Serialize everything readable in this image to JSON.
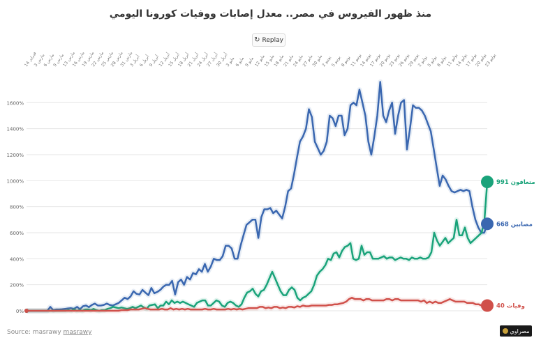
{
  "chart_data": {
    "type": "line",
    "title": "منذ ظهور الفيروس في مصر.. معدل إصابات ووفيات كورونا اليومي",
    "ylim": [
      0,
      1800
    ],
    "y_ticks": [
      0,
      200,
      400,
      600,
      800,
      1000,
      1200,
      1400,
      1600
    ],
    "y_tick_labels": [
      "0%",
      "200%",
      "400%",
      "600%",
      "800%",
      "1000%",
      "1200%",
      "1400%",
      "1600%"
    ],
    "x_tick_labels": [
      "فبراير 14",
      "مارس 3",
      "مارس 6",
      "مارس 9",
      "مارس 13",
      "مارس 16",
      "مارس 19",
      "مارس 22",
      "مارس 25",
      "مارس 28",
      "مارس 31",
      "أبريل 3",
      "أبريل 6",
      "أبريل 9",
      "أبريل 12",
      "أبريل 15",
      "أبريل 18",
      "أبريل 21",
      "أبريل 24",
      "أبريل 27",
      "أبريل 30",
      "مايو 3",
      "مايو 6",
      "مايو 9",
      "مايو 12",
      "مايو 15",
      "مايو 18",
      "مايو 21",
      "مايو 24",
      "مايو 27",
      "مايو 30",
      "يونيو 2",
      "يونيو 5",
      "يونيو 8",
      "يونيو 11",
      "يونيو 14",
      "يونيو 17",
      "يونيو 20",
      "يونيو 23",
      "يونيو 26",
      "يونيو 29",
      "يوليو 2",
      "يوليو 5",
      "يوليو 8",
      "يوليو 11",
      "يوليو 14",
      "يوليو 17",
      "يوليو 20",
      "يوليو 23"
    ],
    "grid": true,
    "series": [
      {
        "name": "مصابين",
        "color": "#3a67b0",
        "end_label": "مصابين 668",
        "values": [
          0,
          0,
          0,
          0,
          0,
          0,
          0,
          0,
          30,
          5,
          10,
          10,
          12,
          15,
          18,
          20,
          15,
          30,
          12,
          35,
          40,
          28,
          45,
          55,
          40,
          40,
          45,
          55,
          45,
          40,
          50,
          60,
          80,
          100,
          90,
          110,
          150,
          130,
          125,
          160,
          140,
          120,
          175,
          135,
          145,
          160,
          185,
          200,
          200,
          230,
          125,
          220,
          240,
          200,
          260,
          240,
          290,
          280,
          320,
          300,
          360,
          300,
          340,
          400,
          390,
          390,
          420,
          500,
          500,
          480,
          400,
          400,
          500,
          580,
          660,
          680,
          700,
          700,
          560,
          720,
          780,
          780,
          790,
          750,
          770,
          740,
          710,
          800,
          920,
          940,
          1050,
          1180,
          1300,
          1340,
          1400,
          1550,
          1490,
          1300,
          1250,
          1200,
          1230,
          1300,
          1500,
          1480,
          1420,
          1500,
          1500,
          1350,
          1400,
          1580,
          1600,
          1580,
          1700,
          1600,
          1500,
          1300,
          1200,
          1340,
          1500,
          1760,
          1500,
          1450,
          1540,
          1600,
          1360,
          1500,
          1600,
          1620,
          1240,
          1400,
          1580,
          1560,
          1560,
          1540,
          1500,
          1440,
          1380,
          1240,
          1100,
          960,
          1040,
          1010,
          960,
          920,
          910,
          920,
          930,
          920,
          930,
          920,
          800,
          700,
          640,
          600,
          600,
          668
        ]
      },
      {
        "name": "متعافون",
        "color": "#1aa37a",
        "end_label": "متعافون 991",
        "values": [
          0,
          0,
          0,
          0,
          0,
          0,
          0,
          0,
          0,
          0,
          0,
          0,
          0,
          0,
          0,
          5,
          0,
          10,
          0,
          5,
          0,
          10,
          10,
          5,
          15,
          5,
          0,
          5,
          5,
          15,
          20,
          30,
          25,
          20,
          25,
          20,
          15,
          20,
          30,
          20,
          30,
          40,
          25,
          15,
          40,
          45,
          50,
          20,
          40,
          40,
          70,
          50,
          80,
          60,
          70,
          60,
          70,
          60,
          50,
          40,
          30,
          60,
          70,
          80,
          80,
          40,
          40,
          60,
          80,
          70,
          40,
          30,
          60,
          70,
          60,
          40,
          30,
          50,
          100,
          140,
          150,
          170,
          130,
          110,
          150,
          160,
          200,
          250,
          300,
          250,
          200,
          150,
          120,
          120,
          160,
          180,
          160,
          100,
          80,
          100,
          110,
          130,
          150,
          200,
          270,
          300,
          320,
          350,
          400,
          390,
          440,
          450,
          410,
          460,
          490,
          500,
          520,
          400,
          390,
          400,
          500,
          430,
          450,
          450,
          400,
          400,
          400,
          410,
          420,
          400,
          410,
          410,
          390,
          400,
          410,
          400,
          400,
          390,
          410,
          400,
          400,
          410,
          400,
          400,
          410,
          450,
          600,
          540,
          500,
          530,
          560,
          520,
          540,
          560,
          700,
          580,
          580,
          640,
          560,
          520,
          540,
          560,
          580,
          600,
          700,
          991
        ]
      },
      {
        "name": "وفيات",
        "color": "#d0504a",
        "end_label": "وفيات 40",
        "values": [
          0,
          0,
          0,
          0,
          0,
          0,
          0,
          0,
          0,
          0,
          0,
          0,
          0,
          0,
          0,
          0,
          0,
          0,
          0,
          0,
          0,
          0,
          0,
          0,
          0,
          0,
          0,
          0,
          0,
          0,
          0,
          0,
          0,
          5,
          5,
          5,
          10,
          10,
          10,
          10,
          15,
          20,
          15,
          10,
          10,
          10,
          10,
          15,
          10,
          10,
          20,
          10,
          15,
          10,
          15,
          10,
          15,
          10,
          10,
          10,
          10,
          10,
          15,
          10,
          10,
          15,
          10,
          10,
          10,
          10,
          15,
          10,
          15,
          10,
          15,
          10,
          15,
          20,
          20,
          20,
          20,
          30,
          30,
          20,
          25,
          20,
          30,
          30,
          20,
          25,
          20,
          30,
          30,
          25,
          35,
          30,
          40,
          35,
          35,
          40,
          40,
          40,
          40,
          40,
          40,
          45,
          45,
          50,
          50,
          55,
          60,
          70,
          90,
          100,
          90,
          90,
          90,
          80,
          90,
          90,
          80,
          80,
          80,
          80,
          80,
          90,
          90,
          80,
          90,
          90,
          80,
          80,
          80,
          80,
          80,
          80,
          80,
          70,
          80,
          60,
          70,
          60,
          70,
          60,
          60,
          70,
          80,
          90,
          80,
          70,
          70,
          70,
          70,
          60,
          60,
          60,
          50,
          50,
          40,
          40,
          40
        ]
      }
    ]
  },
  "ui": {
    "replay_label": "Replay",
    "source_prefix": "Source: masrawy ",
    "source_link": "masrawy",
    "logo_text": "مصراوي"
  }
}
